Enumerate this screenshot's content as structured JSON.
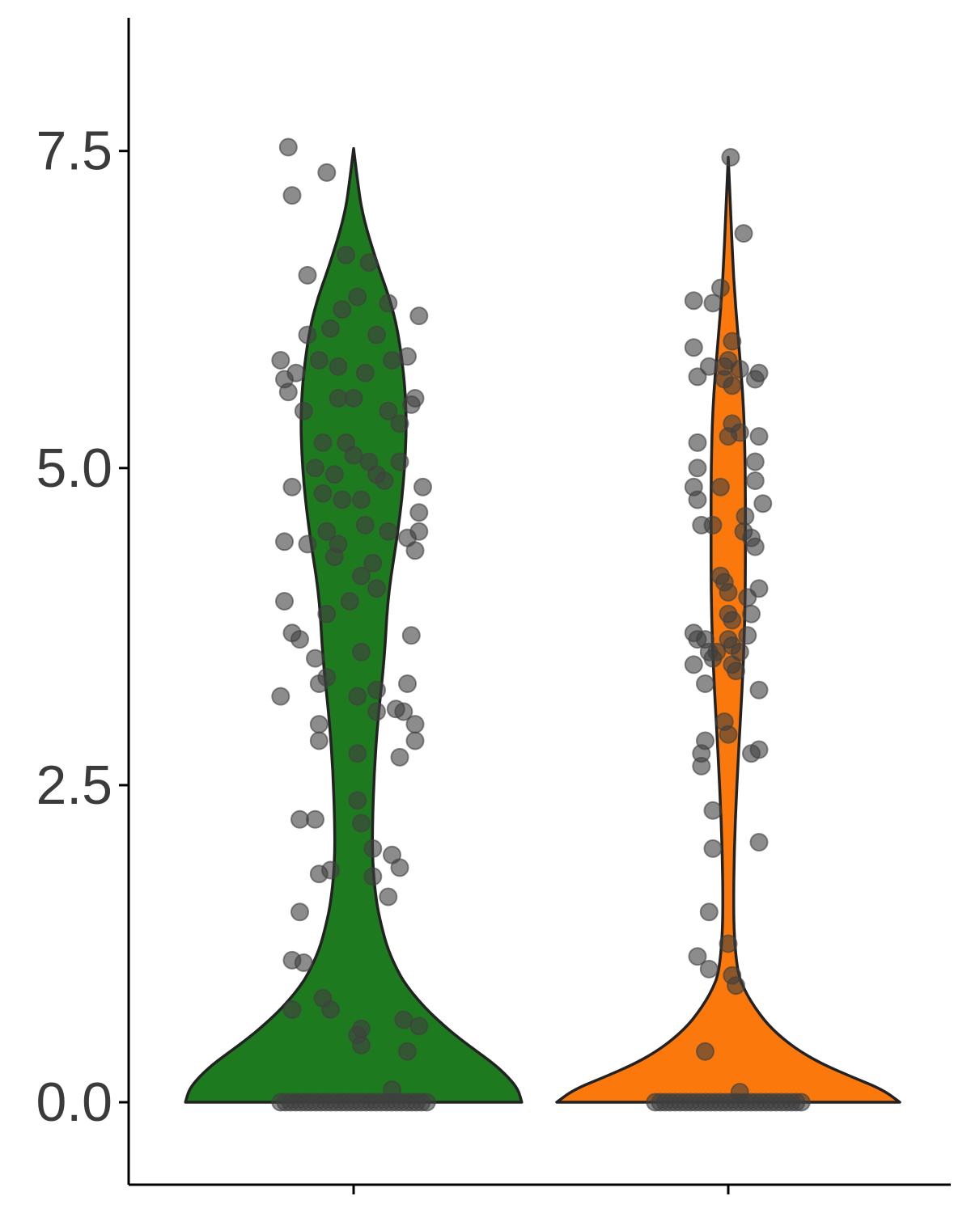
{
  "chart_data": {
    "type": "violin",
    "ylim": [
      -0.65,
      8.55
    ],
    "y_ticks": [
      {
        "value": 0.0,
        "label": "0.0"
      },
      {
        "value": 2.5,
        "label": "2.5"
      },
      {
        "value": 5.0,
        "label": "5.0"
      },
      {
        "value": 7.5,
        "label": "7.5"
      }
    ],
    "grid": false,
    "legend": "none",
    "groups": [
      {
        "color": "#1e7a1e",
        "zeros": 30,
        "points": [
          [
            -0.85,
            7.53
          ],
          [
            -0.35,
            7.33
          ],
          [
            -0.8,
            7.15
          ],
          [
            0.2,
            6.62
          ],
          [
            -0.6,
            6.52
          ],
          [
            -0.1,
            6.68
          ],
          [
            0.45,
            6.3
          ],
          [
            0.85,
            6.2
          ],
          [
            -0.3,
            6.1
          ],
          [
            -0.6,
            6.05
          ],
          [
            -0.15,
            6.25
          ],
          [
            0.05,
            6.35
          ],
          [
            0.3,
            6.05
          ],
          [
            -0.95,
            5.85
          ],
          [
            -0.75,
            5.75
          ],
          [
            -0.9,
            5.7
          ],
          [
            -0.45,
            5.85
          ],
          [
            -0.2,
            5.8
          ],
          [
            0.15,
            5.75
          ],
          [
            0.5,
            5.85
          ],
          [
            0.7,
            5.88
          ],
          [
            -0.85,
            5.6
          ],
          [
            0.8,
            5.55
          ],
          [
            0.75,
            5.5
          ],
          [
            -0.2,
            5.55
          ],
          [
            0.0,
            5.55
          ],
          [
            -0.65,
            5.45
          ],
          [
            0.45,
            5.45
          ],
          [
            0.6,
            5.35
          ],
          [
            -0.4,
            5.2
          ],
          [
            -0.1,
            5.2
          ],
          [
            0.0,
            5.1
          ],
          [
            0.2,
            5.05
          ],
          [
            0.6,
            5.05
          ],
          [
            -0.5,
            5.0
          ],
          [
            -0.25,
            4.95
          ],
          [
            0.3,
            4.95
          ],
          [
            0.4,
            4.9
          ],
          [
            -0.8,
            4.85
          ],
          [
            0.9,
            4.85
          ],
          [
            -0.4,
            4.8
          ],
          [
            -0.15,
            4.75
          ],
          [
            0.1,
            4.75
          ],
          [
            0.85,
            4.65
          ],
          [
            0.15,
            4.55
          ],
          [
            -0.35,
            4.5
          ],
          [
            0.45,
            4.5
          ],
          [
            0.85,
            4.5
          ],
          [
            0.7,
            4.45
          ],
          [
            -0.9,
            4.42
          ],
          [
            -0.6,
            4.4
          ],
          [
            -0.2,
            4.4
          ],
          [
            0.8,
            4.35
          ],
          [
            -0.25,
            4.3
          ],
          [
            0.25,
            4.25
          ],
          [
            0.1,
            4.15
          ],
          [
            0.3,
            4.05
          ],
          [
            -0.05,
            3.95
          ],
          [
            -0.9,
            3.95
          ],
          [
            -0.35,
            3.85
          ],
          [
            0.75,
            3.68
          ],
          [
            -0.8,
            3.7
          ],
          [
            -0.7,
            3.65
          ],
          [
            0.1,
            3.55
          ],
          [
            -0.5,
            3.5
          ],
          [
            -0.35,
            3.35
          ],
          [
            -0.45,
            3.3
          ],
          [
            0.7,
            3.3
          ],
          [
            0.3,
            3.25
          ],
          [
            -0.95,
            3.2
          ],
          [
            0.05,
            3.2
          ],
          [
            0.3,
            3.08
          ],
          [
            0.55,
            3.1
          ],
          [
            0.65,
            3.08
          ],
          [
            0.8,
            2.98
          ],
          [
            -0.45,
            2.98
          ],
          [
            0.8,
            2.85
          ],
          [
            -0.45,
            2.85
          ],
          [
            0.05,
            2.75
          ],
          [
            0.6,
            2.72
          ],
          [
            0.05,
            2.38
          ],
          [
            -0.7,
            2.23
          ],
          [
            -0.5,
            2.23
          ],
          [
            0.1,
            2.2
          ],
          [
            0.25,
            2.0
          ],
          [
            0.5,
            1.95
          ],
          [
            0.6,
            1.85
          ],
          [
            -0.3,
            1.83
          ],
          [
            -0.45,
            1.8
          ],
          [
            0.25,
            1.78
          ],
          [
            0.45,
            1.62
          ],
          [
            -0.7,
            1.5
          ],
          [
            -0.8,
            1.12
          ],
          [
            -0.65,
            1.1
          ],
          [
            -0.4,
            0.82
          ],
          [
            -0.3,
            0.73
          ],
          [
            -0.8,
            0.73
          ],
          [
            0.65,
            0.65
          ],
          [
            0.85,
            0.6
          ],
          [
            0.1,
            0.58
          ],
          [
            0.05,
            0.53
          ],
          [
            0.1,
            0.45
          ],
          [
            0.7,
            0.4
          ],
          [
            0.5,
            0.1
          ]
        ],
        "density": [
          [
            0.0,
            0.98
          ],
          [
            0.1,
            0.96
          ],
          [
            0.2,
            0.9
          ],
          [
            0.3,
            0.82
          ],
          [
            0.4,
            0.72
          ],
          [
            0.5,
            0.62
          ],
          [
            0.6,
            0.53
          ],
          [
            0.7,
            0.45
          ],
          [
            0.8,
            0.38
          ],
          [
            0.9,
            0.32
          ],
          [
            1.0,
            0.27
          ],
          [
            1.2,
            0.2
          ],
          [
            1.4,
            0.16
          ],
          [
            1.6,
            0.13
          ],
          [
            1.9,
            0.11
          ],
          [
            2.2,
            0.11
          ],
          [
            2.6,
            0.12
          ],
          [
            3.0,
            0.14
          ],
          [
            3.5,
            0.18
          ],
          [
            4.0,
            0.2
          ],
          [
            4.5,
            0.26
          ],
          [
            5.0,
            0.3
          ],
          [
            5.5,
            0.31
          ],
          [
            6.0,
            0.27
          ],
          [
            6.3,
            0.22
          ],
          [
            6.6,
            0.14
          ],
          [
            7.0,
            0.05
          ],
          [
            7.3,
            0.02
          ],
          [
            7.52,
            0.0
          ]
        ]
      },
      {
        "color": "#fb790c",
        "zeros": 30,
        "points": [
          [
            0.03,
            7.45
          ],
          [
            0.2,
            6.85
          ],
          [
            -0.1,
            6.42
          ],
          [
            -0.45,
            6.32
          ],
          [
            -0.2,
            6.3
          ],
          [
            0.05,
            6.0
          ],
          [
            -0.45,
            5.95
          ],
          [
            0.0,
            5.85
          ],
          [
            -0.25,
            5.8
          ],
          [
            -0.05,
            5.8
          ],
          [
            0.15,
            5.78
          ],
          [
            0.4,
            5.75
          ],
          [
            -0.4,
            5.72
          ],
          [
            -0.05,
            5.7
          ],
          [
            0.05,
            5.65
          ],
          [
            0.35,
            5.7
          ],
          [
            -0.4,
            5.2
          ],
          [
            0.05,
            5.35
          ],
          [
            0.0,
            5.25
          ],
          [
            0.15,
            5.28
          ],
          [
            0.4,
            5.25
          ],
          [
            0.35,
            5.05
          ],
          [
            -0.4,
            5.0
          ],
          [
            -0.45,
            4.85
          ],
          [
            -0.4,
            4.75
          ],
          [
            -0.1,
            4.85
          ],
          [
            0.35,
            4.9
          ],
          [
            0.45,
            4.72
          ],
          [
            0.3,
            4.45
          ],
          [
            -0.35,
            4.55
          ],
          [
            -0.2,
            4.55
          ],
          [
            0.22,
            4.62
          ],
          [
            0.2,
            4.5
          ],
          [
            0.35,
            4.38
          ],
          [
            -0.1,
            4.15
          ],
          [
            -0.05,
            4.1
          ],
          [
            0.0,
            4.02
          ],
          [
            0.25,
            3.98
          ],
          [
            0.4,
            4.05
          ],
          [
            0.0,
            3.85
          ],
          [
            0.05,
            3.8
          ],
          [
            0.3,
            3.85
          ],
          [
            -0.45,
            3.7
          ],
          [
            -0.3,
            3.65
          ],
          [
            -0.4,
            3.65
          ],
          [
            0.0,
            3.65
          ],
          [
            0.05,
            3.6
          ],
          [
            0.25,
            3.68
          ],
          [
            -0.25,
            3.55
          ],
          [
            -0.15,
            3.55
          ],
          [
            0.15,
            3.55
          ],
          [
            -0.2,
            3.5
          ],
          [
            0.05,
            3.45
          ],
          [
            -0.45,
            3.45
          ],
          [
            0.1,
            3.4
          ],
          [
            0.4,
            3.25
          ],
          [
            -0.3,
            3.3
          ],
          [
            -0.05,
            3.0
          ],
          [
            -0.3,
            2.85
          ],
          [
            0.0,
            2.9
          ],
          [
            -0.35,
            2.75
          ],
          [
            0.3,
            2.75
          ],
          [
            0.4,
            2.78
          ],
          [
            -0.35,
            2.65
          ],
          [
            -0.2,
            2.3
          ],
          [
            0.4,
            2.05
          ],
          [
            -0.2,
            2.0
          ],
          [
            -0.25,
            1.5
          ],
          [
            -0.4,
            1.15
          ],
          [
            -0.25,
            1.05
          ],
          [
            0.0,
            1.25
          ],
          [
            0.05,
            1.0
          ],
          [
            0.1,
            0.92
          ],
          [
            -0.3,
            0.4
          ],
          [
            0.15,
            0.08
          ]
        ],
        "density": [
          [
            0.0,
            1.0
          ],
          [
            0.1,
            0.9
          ],
          [
            0.2,
            0.72
          ],
          [
            0.3,
            0.55
          ],
          [
            0.4,
            0.42
          ],
          [
            0.5,
            0.32
          ],
          [
            0.6,
            0.24
          ],
          [
            0.7,
            0.18
          ],
          [
            0.8,
            0.13
          ],
          [
            0.9,
            0.09
          ],
          [
            1.0,
            0.06
          ],
          [
            1.2,
            0.04
          ],
          [
            1.5,
            0.03
          ],
          [
            2.0,
            0.035
          ],
          [
            2.5,
            0.05
          ],
          [
            3.0,
            0.07
          ],
          [
            3.5,
            0.09
          ],
          [
            4.0,
            0.1
          ],
          [
            4.5,
            0.1
          ],
          [
            5.0,
            0.1
          ],
          [
            5.5,
            0.09
          ],
          [
            6.0,
            0.06
          ],
          [
            6.5,
            0.03
          ],
          [
            7.0,
            0.015
          ],
          [
            7.45,
            0.0
          ]
        ]
      }
    ]
  }
}
